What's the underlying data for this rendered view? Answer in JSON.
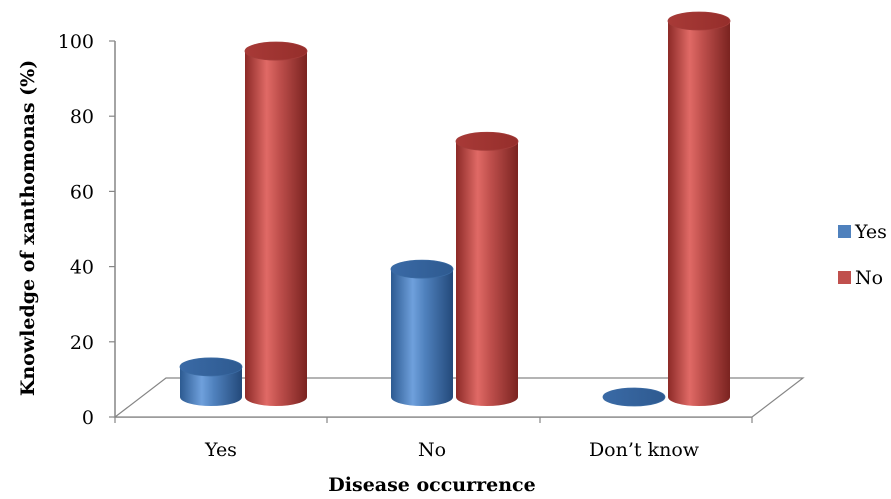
{
  "chart_data": {
    "type": "bar",
    "style": "3d-cylinder",
    "title": "",
    "xlabel": "Disease  occurrence",
    "ylabel": "Knowledge of xanthomonas (%)",
    "categories": [
      "Yes",
      "No",
      "Don’t know"
    ],
    "series": [
      {
        "name": "Yes",
        "color": "#4f81bd",
        "values": [
          8,
          34,
          0
        ]
      },
      {
        "name": "No",
        "color": "#c0504d",
        "values": [
          92,
          68,
          100
        ]
      }
    ],
    "ylim": [
      0,
      100
    ],
    "yticks": [
      "0",
      "20",
      "40",
      "60",
      "80",
      "100"
    ],
    "legend_position": "right",
    "grid": false
  }
}
